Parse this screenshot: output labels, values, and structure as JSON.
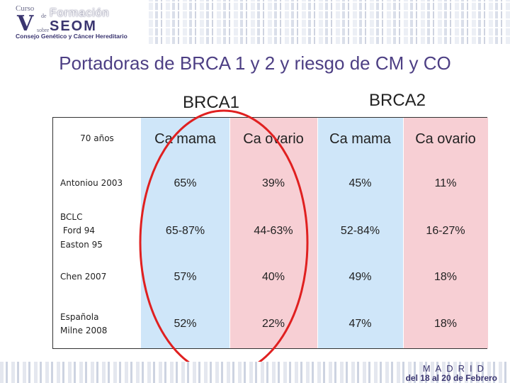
{
  "header": {
    "logo": {
      "line_curso": "Curso",
      "line_de": "de",
      "line_formacion": "Formación",
      "line_seom": "SEOM",
      "line_sobre": "sobre",
      "line_sub": "Consejo Genético y Cáncer Hereditario"
    }
  },
  "title": "Portadoras de BRCA 1 y 2 y riesgo de CM y CO",
  "groups": {
    "brca1": "BRCA1",
    "brca2": "BRCA2"
  },
  "table": {
    "corner_label": "70 años",
    "columns": [
      "Ca mama",
      "Ca ovario",
      "Ca mama",
      "Ca ovario"
    ],
    "rows": [
      {
        "label": [
          "Antoniou 2003"
        ],
        "values": [
          "65%",
          "39%",
          "45%",
          "11%"
        ]
      },
      {
        "label": [
          "BCLC",
          " Ford 94",
          "Easton 95"
        ],
        "values": [
          "65-87%",
          "44-63%",
          "52-84%",
          "16-27%"
        ]
      },
      {
        "label": [
          "Chen 2007"
        ],
        "values": [
          "57%",
          "40%",
          "49%",
          "18%"
        ]
      },
      {
        "label": [
          "Española",
          "Milne 2008"
        ],
        "values": [
          "52%",
          "22%",
          "47%",
          "18%"
        ]
      }
    ]
  },
  "highlight_color": "#e02020",
  "footer": {
    "city": "MADRID",
    "dates": "del 18 al 20 de Febrero"
  }
}
